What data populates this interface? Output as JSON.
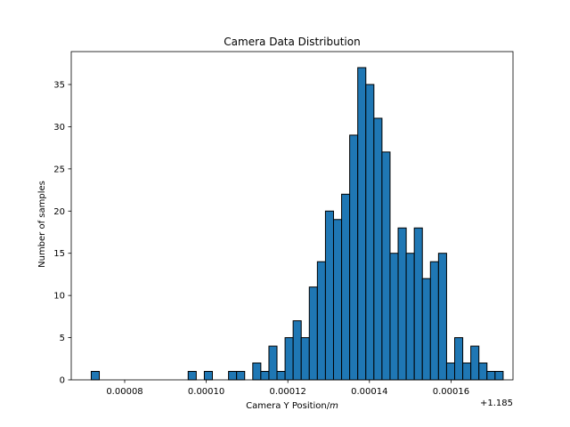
{
  "chart_data": {
    "type": "bar",
    "title": "Camera Data Distribution",
    "xlabel": "Camera Y Position/",
    "xlabel_unit": "m",
    "ylabel": "Number of samples",
    "x_offset_label": "+1.185",
    "xlim": [
      6.69e-05,
      0.0001752
    ],
    "ylim": [
      0,
      38.9
    ],
    "x_ticks": [
      8e-05,
      0.0001,
      0.00012,
      0.00014,
      0.00016
    ],
    "x_tick_labels": [
      "0.00008",
      "0.00010",
      "0.00012",
      "0.00014",
      "0.00016"
    ],
    "y_ticks": [
      0,
      5,
      10,
      15,
      20,
      25,
      30,
      35
    ],
    "y_tick_labels": [
      "0",
      "5",
      "10",
      "15",
      "20",
      "25",
      "30",
      "35"
    ],
    "bin_width": 1.98e-06,
    "bin_start": 7.18e-05,
    "counts": [
      1,
      0,
      0,
      0,
      0,
      0,
      0,
      0,
      0,
      0,
      0,
      0,
      1,
      0,
      1,
      0,
      0,
      1,
      1,
      0,
      2,
      1,
      4,
      1,
      5,
      7,
      5,
      11,
      14,
      20,
      19,
      22,
      29,
      37,
      35,
      31,
      27,
      15,
      18,
      15,
      18,
      12,
      14,
      15,
      2,
      5,
      2,
      4,
      2,
      1,
      1
    ],
    "bar_color": "#1f77b4",
    "edge_color": "#000000",
    "grid": false
  }
}
